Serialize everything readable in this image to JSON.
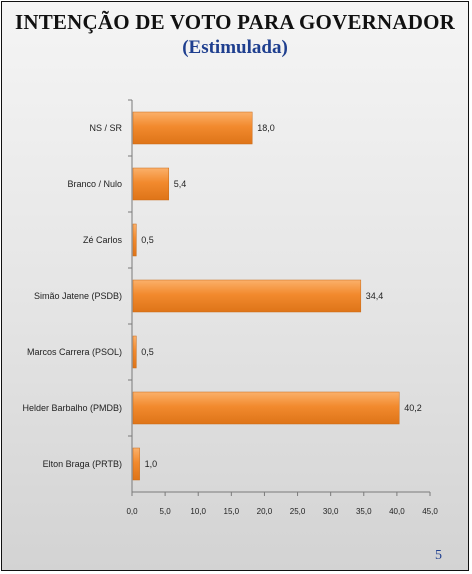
{
  "title": "INTENÇÃO DE VOTO PARA GOVERNADOR",
  "subtitle": "(Estimulada)",
  "page_number": "5",
  "colors": {
    "bar": "#f28a2e",
    "bar_dark": "#d96f14",
    "title": "#111111",
    "subtitle": "#1f3f8f"
  },
  "chart_data": {
    "type": "bar",
    "orientation": "horizontal",
    "categories": [
      "NS / SR",
      "Branco / Nulo",
      "Zé Carlos",
      "Simão Jatene (PSDB)",
      "Marcos Carrera (PSOL)",
      "Helder Barbalho (PMDB)",
      "Elton Braga (PRTB)"
    ],
    "values": [
      18.0,
      5.4,
      0.5,
      34.4,
      0.5,
      40.2,
      1.0
    ],
    "value_labels": [
      "18,0",
      "5,4",
      "0,5",
      "34,4",
      "0,5",
      "40,2",
      "1,0"
    ],
    "xlim": [
      0,
      45
    ],
    "xticks": [
      "0,0",
      "5,0",
      "10,0",
      "15,0",
      "20,0",
      "25,0",
      "30,0",
      "35,0",
      "40,0",
      "45,0"
    ],
    "grid": false,
    "legend": "none"
  }
}
